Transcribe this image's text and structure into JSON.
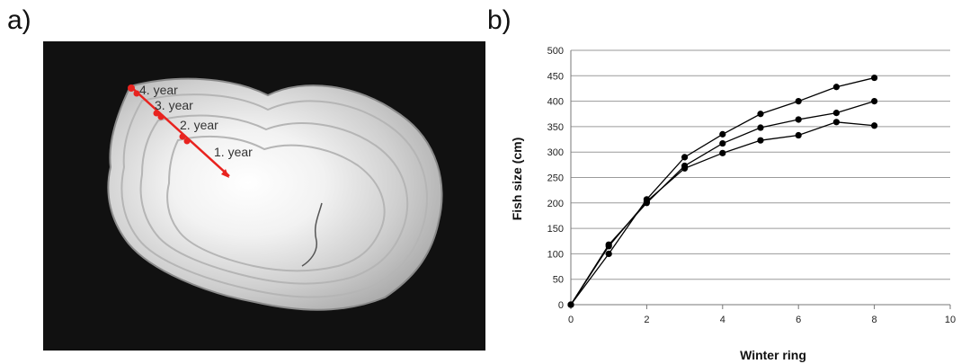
{
  "panels": {
    "a": "a)",
    "b": "b)"
  },
  "otolith": {
    "annotations": [
      "4. year",
      "3. year",
      "2. year",
      "1. year"
    ],
    "arrow_color": "#e8231f"
  },
  "chart_data": {
    "type": "line",
    "xlabel": "Winter ring",
    "ylabel": "Fish size (cm)",
    "xlim": [
      0,
      10
    ],
    "ylim": [
      0,
      500
    ],
    "xticks": [
      0,
      2,
      4,
      6,
      8,
      10
    ],
    "yticks": [
      0,
      50,
      100,
      150,
      200,
      250,
      300,
      350,
      400,
      450,
      500
    ],
    "grid": "horizontal",
    "line_color": "#000000",
    "series": [
      {
        "x": [
          0,
          1,
          2,
          3,
          4,
          5,
          6,
          7,
          8
        ],
        "values": [
          0,
          100,
          207,
          290,
          335,
          375,
          400,
          428,
          446
        ]
      },
      {
        "x": [
          0,
          1,
          2,
          3,
          4,
          5,
          6,
          7,
          8
        ],
        "values": [
          0,
          118,
          200,
          273,
          317,
          348,
          364,
          377,
          400
        ]
      },
      {
        "x": [
          0,
          1,
          2,
          3,
          4,
          5,
          6,
          7,
          8
        ],
        "values": [
          0,
          115,
          203,
          268,
          298,
          323,
          333,
          359,
          352
        ]
      }
    ]
  }
}
